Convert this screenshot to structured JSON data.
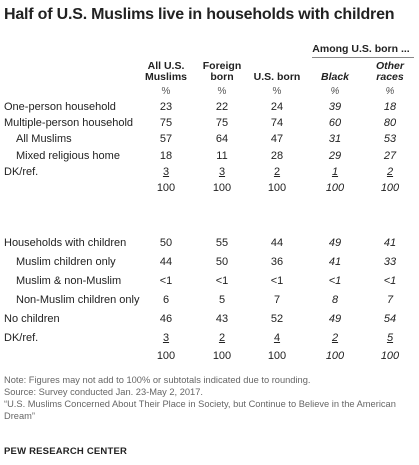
{
  "title": "Half of U.S. Muslims live in households with children",
  "group_header": "Among U.S. born ...",
  "columns": [
    {
      "l1": "All U.S.",
      "l2": "Muslims"
    },
    {
      "l1": "Foreign",
      "l2": "born"
    },
    {
      "l1": "",
      "l2": "U.S. born"
    },
    {
      "l1": "",
      "l2": "Black"
    },
    {
      "l1": "Other",
      "l2": "races"
    }
  ],
  "pct_symbol": "%",
  "rows_a": [
    {
      "label": "One-person household",
      "indent": false,
      "values": [
        "23",
        "22",
        "24",
        "39",
        "18"
      ]
    },
    {
      "label": "Multiple-person household",
      "indent": false,
      "values": [
        "75",
        "75",
        "74",
        "60",
        "80"
      ]
    },
    {
      "label": "All Muslims",
      "indent": true,
      "values": [
        "57",
        "64",
        "47",
        "31",
        "53"
      ]
    },
    {
      "label": "Mixed religious home",
      "indent": true,
      "values": [
        "18",
        "11",
        "28",
        "29",
        "27"
      ]
    },
    {
      "label": "DK/ref.",
      "indent": false,
      "underline": true,
      "values": [
        "3",
        "3",
        "2",
        "1",
        "2"
      ]
    },
    {
      "label": "",
      "indent": false,
      "values": [
        "100",
        "100",
        "100",
        "100",
        "100"
      ]
    }
  ],
  "rows_b": [
    {
      "label": "Households with children",
      "indent": false,
      "values": [
        "50",
        "55",
        "44",
        "49",
        "41"
      ]
    },
    {
      "label": "Muslim children only",
      "indent": true,
      "values": [
        "44",
        "50",
        "36",
        "41",
        "33"
      ]
    },
    {
      "label": "Muslim & non-Muslim",
      "indent": true,
      "values": [
        "<1",
        "<1",
        "<1",
        "<1",
        "<1"
      ]
    },
    {
      "label": "Non-Muslim children only",
      "indent": true,
      "values": [
        "6",
        "5",
        "7",
        "8",
        "7"
      ]
    },
    {
      "label": "No children",
      "indent": false,
      "values": [
        "46",
        "43",
        "52",
        "49",
        "54"
      ]
    },
    {
      "label": "DK/ref.",
      "indent": false,
      "underline": true,
      "values": [
        "3",
        "2",
        "4",
        "2",
        "5"
      ]
    },
    {
      "label": "",
      "indent": false,
      "values": [
        "100",
        "100",
        "100",
        "100",
        "100"
      ]
    }
  ],
  "notes": {
    "note": "Note: Figures may not add to 100% or subtotals indicated due to rounding.",
    "source": "Source: Survey conducted Jan. 23-May 2, 2017.",
    "report": "“U.S. Muslims Concerned About Their Place in Society, but Continue to Believe in the American Dream”"
  },
  "footer": "PEW RESEARCH CENTER"
}
